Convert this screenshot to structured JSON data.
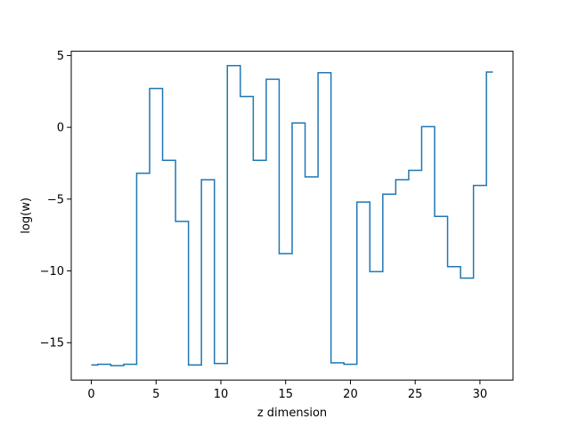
{
  "chart_data": {
    "type": "line",
    "drawstyle": "steps-mid",
    "xlabel": "z dimension",
    "ylabel": "log(w)",
    "xlim": [
      -1.55,
      32.55
    ],
    "ylim": [
      -17.6,
      5.3
    ],
    "xticks": [
      0,
      5,
      10,
      15,
      20,
      25,
      30
    ],
    "yticks": [
      -15,
      -10,
      -5,
      0,
      5
    ],
    "xtick_labels": [
      "0",
      "5",
      "10",
      "15",
      "20",
      "25",
      "30"
    ],
    "ytick_labels": [
      "−15",
      "−10",
      "−5",
      "0",
      "5"
    ],
    "grid": false,
    "series": [
      {
        "color": "#1f77b4",
        "x": [
          0,
          1,
          2,
          3,
          4,
          5,
          6,
          7,
          8,
          9,
          10,
          11,
          12,
          13,
          14,
          15,
          16,
          17,
          18,
          19,
          20,
          21,
          22,
          23,
          24,
          25,
          26,
          27,
          28,
          29,
          30,
          31
        ],
        "y": [
          -16.55,
          -16.5,
          -16.6,
          -16.5,
          -3.2,
          2.7,
          -2.3,
          -6.55,
          -16.55,
          -3.65,
          -16.45,
          4.3,
          2.15,
          -2.3,
          3.35,
          -8.8,
          0.3,
          -3.45,
          3.8,
          -16.4,
          -16.5,
          -5.2,
          -10.05,
          -4.65,
          -3.65,
          -3.0,
          0.05,
          -6.2,
          -9.7,
          -10.5,
          -4.05,
          3.85
        ]
      }
    ]
  }
}
